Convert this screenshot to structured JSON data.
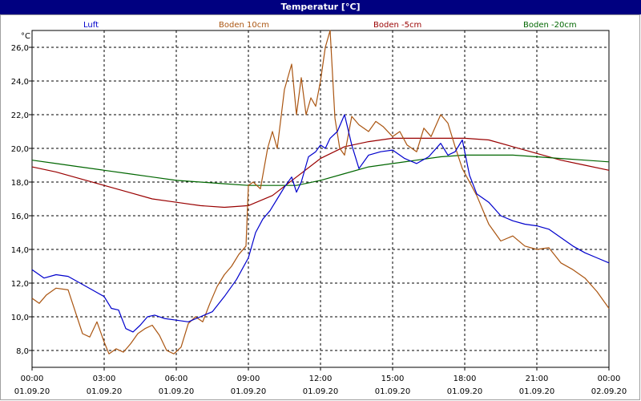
{
  "window": {
    "title": "Temperatur [°C]"
  },
  "chart_data": {
    "type": "line",
    "title": "Temperatur [°C]",
    "ylabel": "°C",
    "ylim": [
      7,
      27
    ],
    "xlim": [
      0,
      24
    ],
    "grid": true,
    "y_ticks": [
      "8,0",
      "10,0",
      "12,0",
      "14,0",
      "16,0",
      "18,0",
      "20,0",
      "22,0",
      "24,0",
      "26,0"
    ],
    "y_tick_values": [
      8,
      10,
      12,
      14,
      16,
      18,
      20,
      22,
      24,
      26
    ],
    "x_ticks": [
      {
        "time": "00:00",
        "date": "01.09.20",
        "hour": 0
      },
      {
        "time": "03:00",
        "date": "01.09.20",
        "hour": 3
      },
      {
        "time": "06:00",
        "date": "01.09.20",
        "hour": 6
      },
      {
        "time": "09:00",
        "date": "01.09.20",
        "hour": 9
      },
      {
        "time": "12:00",
        "date": "01.09.20",
        "hour": 12
      },
      {
        "time": "15:00",
        "date": "01.09.20",
        "hour": 15
      },
      {
        "time": "18:00",
        "date": "01.09.20",
        "hour": 18
      },
      {
        "time": "21:00",
        "date": "01.09.20",
        "hour": 21
      },
      {
        "time": "00:00",
        "date": "02.09.20",
        "hour": 24
      }
    ],
    "series": [
      {
        "name": "Luft",
        "color": "#0000cc",
        "x": [
          0,
          0.5,
          1,
          1.5,
          2,
          2.5,
          3,
          3.3,
          3.6,
          3.9,
          4.2,
          4.5,
          4.8,
          5.1,
          5.5,
          6,
          6.5,
          7,
          7.5,
          8,
          8.5,
          9,
          9.3,
          9.6,
          9.9,
          10.2,
          10.5,
          10.8,
          11,
          11.2,
          11.5,
          11.8,
          12,
          12.2,
          12.4,
          12.7,
          13,
          13.3,
          13.6,
          14,
          14.5,
          15,
          15.5,
          16,
          16.5,
          17,
          17.3,
          17.6,
          17.9,
          18.2,
          18.5,
          19,
          19.5,
          20,
          20.5,
          21,
          21.5,
          22,
          22.5,
          23,
          23.5,
          24
        ],
        "values": [
          12.8,
          12.3,
          12.5,
          12.4,
          12.0,
          11.6,
          11.2,
          10.5,
          10.4,
          9.3,
          9.1,
          9.5,
          10.0,
          10.1,
          9.9,
          9.8,
          9.7,
          10.0,
          10.3,
          11.2,
          12.2,
          13.5,
          15.0,
          15.8,
          16.3,
          17.0,
          17.7,
          18.3,
          17.4,
          18.0,
          19.5,
          19.8,
          20.2,
          20.0,
          20.6,
          21.0,
          22.0,
          20.2,
          18.8,
          19.6,
          19.8,
          19.9,
          19.4,
          19.1,
          19.5,
          20.3,
          19.6,
          19.8,
          20.5,
          18.4,
          17.3,
          16.8,
          16.0,
          15.7,
          15.5,
          15.4,
          15.2,
          14.7,
          14.2,
          13.8,
          13.5,
          13.2
        ]
      },
      {
        "name": "Boden 10cm",
        "color": "#aa5511",
        "x": [
          0,
          0.3,
          0.6,
          1,
          1.5,
          1.8,
          2.1,
          2.4,
          2.7,
          3,
          3.2,
          3.5,
          3.8,
          4.1,
          4.4,
          4.7,
          5,
          5.3,
          5.6,
          5.9,
          6.2,
          6.5,
          6.8,
          7.1,
          7.4,
          7.7,
          8,
          8.3,
          8.6,
          8.9,
          9,
          9.2,
          9.5,
          9.8,
          10,
          10.2,
          10.5,
          10.8,
          11,
          11.2,
          11.4,
          11.6,
          11.8,
          12,
          12.2,
          12.4,
          12.6,
          12.8,
          13,
          13.3,
          13.6,
          14,
          14.3,
          14.6,
          15,
          15.3,
          15.6,
          16,
          16.3,
          16.6,
          17,
          17.3,
          17.6,
          17.9,
          18.2,
          18.5,
          19,
          19.5,
          20,
          20.5,
          21,
          21.5,
          22,
          22.5,
          23,
          23.5,
          24
        ],
        "values": [
          11.1,
          10.8,
          11.3,
          11.7,
          11.6,
          10.3,
          9.0,
          8.8,
          9.7,
          8.5,
          7.8,
          8.1,
          7.9,
          8.4,
          9.0,
          9.3,
          9.5,
          8.9,
          8.0,
          7.8,
          8.2,
          9.6,
          10.0,
          9.7,
          10.8,
          11.8,
          12.5,
          13.0,
          13.7,
          14.2,
          17.8,
          18.0,
          17.6,
          20.0,
          21.0,
          20.0,
          23.5,
          25.0,
          22.0,
          24.2,
          22.0,
          23.0,
          22.5,
          24.0,
          26.0,
          27.0,
          21.8,
          20.0,
          19.6,
          21.9,
          21.4,
          21.0,
          21.6,
          21.3,
          20.7,
          21.0,
          20.2,
          19.8,
          21.2,
          20.7,
          22.0,
          21.5,
          20.1,
          18.8,
          18.0,
          17.2,
          15.5,
          14.5,
          14.8,
          14.2,
          14.0,
          14.1,
          13.2,
          12.8,
          12.3,
          11.5,
          10.5
        ]
      },
      {
        "name": "Boden -5cm",
        "color": "#990000",
        "x": [
          0,
          1,
          2,
          3,
          4,
          5,
          6,
          7,
          8,
          9,
          10,
          11,
          12,
          13,
          14,
          15,
          16,
          17,
          18,
          19,
          20,
          21,
          22,
          23,
          24
        ],
        "values": [
          18.9,
          18.6,
          18.2,
          17.8,
          17.4,
          17.0,
          16.8,
          16.6,
          16.5,
          16.6,
          17.2,
          18.3,
          19.4,
          20.1,
          20.4,
          20.6,
          20.6,
          20.6,
          20.6,
          20.5,
          20.1,
          19.7,
          19.3,
          19.0,
          18.7
        ]
      },
      {
        "name": "Boden -20cm",
        "color": "#006600",
        "x": [
          0,
          1,
          2,
          3,
          4,
          5,
          6,
          7,
          8,
          9,
          10,
          11,
          12,
          13,
          14,
          15,
          16,
          17,
          18,
          19,
          20,
          21,
          22,
          23,
          24
        ],
        "values": [
          19.3,
          19.1,
          18.9,
          18.7,
          18.5,
          18.3,
          18.1,
          18.0,
          17.9,
          17.8,
          17.8,
          17.8,
          18.1,
          18.5,
          18.9,
          19.1,
          19.3,
          19.5,
          19.6,
          19.6,
          19.6,
          19.5,
          19.4,
          19.3,
          19.2
        ]
      }
    ]
  }
}
